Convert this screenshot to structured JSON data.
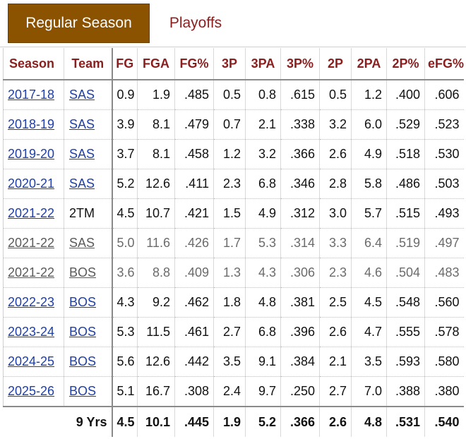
{
  "tabs": {
    "regular_season": "Regular Season",
    "playoffs": "Playoffs"
  },
  "table": {
    "headers": [
      "Season",
      "Team",
      "FG",
      "FGA",
      "FG%",
      "3P",
      "3PA",
      "3P%",
      "2P",
      "2PA",
      "2P%",
      "eFG%"
    ],
    "rows": [
      {
        "season": "2017-18",
        "team": "SAS",
        "team_link": true,
        "partial": false,
        "stats": [
          "0.9",
          "1.9",
          ".485",
          "0.5",
          "0.8",
          ".615",
          "0.5",
          "1.2",
          ".400",
          ".606"
        ]
      },
      {
        "season": "2018-19",
        "team": "SAS",
        "team_link": true,
        "partial": false,
        "stats": [
          "3.9",
          "8.1",
          ".479",
          "0.7",
          "2.1",
          ".338",
          "3.2",
          "6.0",
          ".529",
          ".523"
        ]
      },
      {
        "season": "2019-20",
        "team": "SAS",
        "team_link": true,
        "partial": false,
        "stats": [
          "3.7",
          "8.1",
          ".458",
          "1.2",
          "3.2",
          ".366",
          "2.6",
          "4.9",
          ".518",
          ".530"
        ]
      },
      {
        "season": "2020-21",
        "team": "SAS",
        "team_link": true,
        "partial": false,
        "stats": [
          "5.2",
          "12.6",
          ".411",
          "2.3",
          "6.8",
          ".346",
          "2.8",
          "5.8",
          ".486",
          ".503"
        ]
      },
      {
        "season": "2021-22",
        "team": "2TM",
        "team_link": false,
        "partial": false,
        "stats": [
          "4.5",
          "10.7",
          ".421",
          "1.5",
          "4.9",
          ".312",
          "3.0",
          "5.7",
          ".515",
          ".493"
        ]
      },
      {
        "season": "2021-22",
        "team": "SAS",
        "team_link": true,
        "partial": true,
        "stats": [
          "5.0",
          "11.6",
          ".426",
          "1.7",
          "5.3",
          ".314",
          "3.3",
          "6.4",
          ".519",
          ".497"
        ]
      },
      {
        "season": "2021-22",
        "team": "BOS",
        "team_link": true,
        "partial": true,
        "stats": [
          "3.6",
          "8.8",
          ".409",
          "1.3",
          "4.3",
          ".306",
          "2.3",
          "4.6",
          ".504",
          ".483"
        ]
      },
      {
        "season": "2022-23",
        "team": "BOS",
        "team_link": true,
        "partial": false,
        "stats": [
          "4.3",
          "9.2",
          ".462",
          "1.8",
          "4.8",
          ".381",
          "2.5",
          "4.5",
          ".548",
          ".560"
        ]
      },
      {
        "season": "2023-24",
        "team": "BOS",
        "team_link": true,
        "partial": false,
        "stats": [
          "5.3",
          "11.5",
          ".461",
          "2.7",
          "6.8",
          ".396",
          "2.6",
          "4.7",
          ".555",
          ".578"
        ]
      },
      {
        "season": "2024-25",
        "team": "BOS",
        "team_link": true,
        "partial": false,
        "stats": [
          "5.6",
          "12.6",
          ".442",
          "3.5",
          "9.1",
          ".384",
          "2.1",
          "3.5",
          ".593",
          ".580"
        ]
      },
      {
        "season": "2025-26",
        "team": "BOS",
        "team_link": true,
        "partial": false,
        "stats": [
          "5.1",
          "16.7",
          ".308",
          "2.4",
          "9.7",
          ".250",
          "2.7",
          "7.0",
          ".388",
          ".380"
        ]
      }
    ],
    "footer": {
      "label": "9 Yrs",
      "stats": [
        "4.5",
        "10.1",
        ".445",
        "1.9",
        "5.2",
        ".366",
        "2.6",
        "4.8",
        ".531",
        ".540"
      ]
    }
  }
}
